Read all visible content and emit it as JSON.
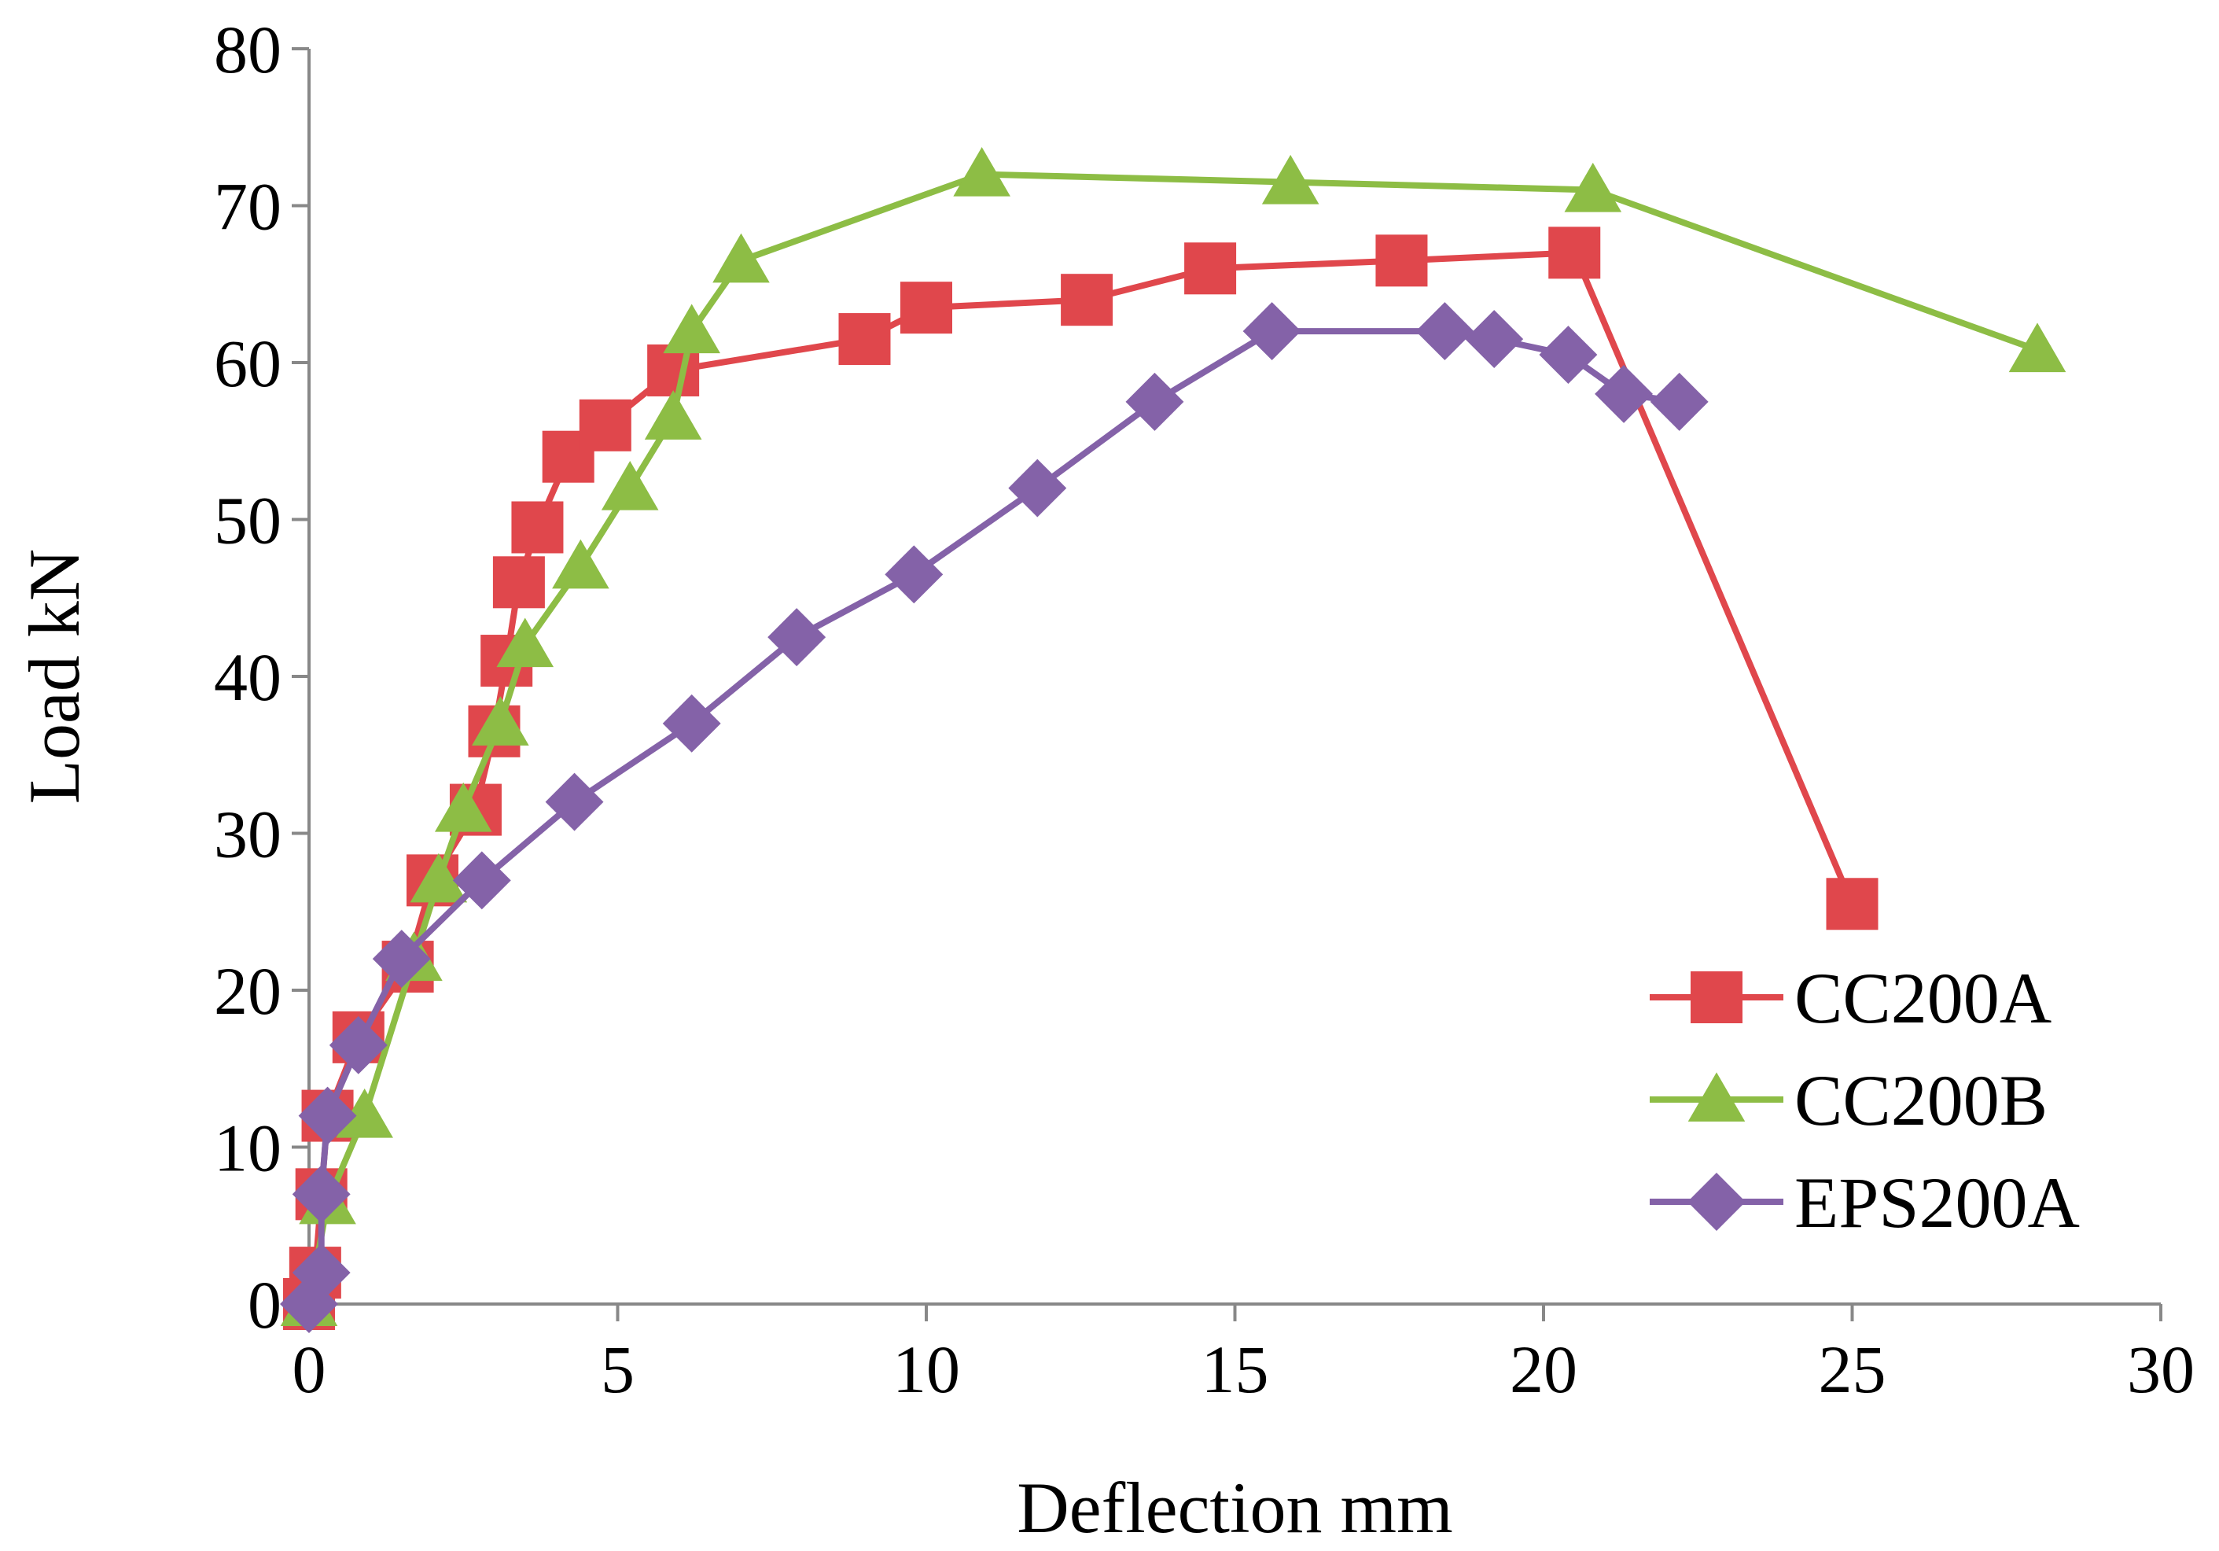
{
  "chart_data": {
    "type": "line",
    "title": "",
    "xlabel": "Deflection mm",
    "ylabel": "Load kN",
    "xlim": [
      0,
      30
    ],
    "ylim": [
      0,
      80
    ],
    "xticks": [
      0,
      5,
      10,
      15,
      20,
      25,
      30
    ],
    "yticks": [
      0,
      10,
      20,
      30,
      40,
      50,
      60,
      70,
      80
    ],
    "grid": false,
    "legend_position": "bottom-right",
    "series": [
      {
        "name": "CC200A",
        "color": "#E0474C",
        "marker": "square",
        "x": [
          0,
          0.1,
          0.2,
          0.3,
          0.8,
          1.6,
          2.0,
          2.7,
          3.0,
          3.2,
          3.4,
          3.7,
          4.2,
          4.8,
          5.9,
          9.0,
          10.0,
          12.6,
          14.6,
          17.7,
          20.5,
          25.0
        ],
        "y": [
          0,
          2,
          7,
          12,
          17,
          21.5,
          27,
          31.5,
          36.5,
          41,
          46,
          49.5,
          54,
          56,
          59.5,
          61.5,
          63.5,
          64,
          66,
          66.5,
          67,
          25.5
        ]
      },
      {
        "name": "CC200B",
        "color": "#8DBD45",
        "marker": "triangle",
        "x": [
          0,
          0.3,
          0.9,
          1.7,
          2.1,
          2.5,
          3.1,
          3.5,
          4.4,
          5.2,
          5.9,
          6.2,
          7.0,
          10.9,
          15.9,
          20.8,
          28.0
        ],
        "y": [
          0,
          6.5,
          12,
          22,
          27,
          31.5,
          37,
          42,
          47,
          52,
          56.5,
          62,
          66.5,
          72,
          71.5,
          71,
          60.8
        ]
      },
      {
        "name": "EPS200A",
        "color": "#8462A8",
        "marker": "diamond",
        "x": [
          0,
          0.2,
          0.2,
          0.3,
          0.8,
          1.5,
          2.8,
          4.3,
          6.2,
          7.9,
          9.8,
          11.8,
          13.7,
          15.6,
          18.4,
          19.2,
          20.4,
          21.3,
          22.2
        ],
        "y": [
          0,
          2,
          7,
          12,
          16.5,
          22,
          27,
          32,
          37,
          42.5,
          46.5,
          52,
          57.5,
          62,
          62,
          61.5,
          60.5,
          58,
          57.5
        ]
      }
    ]
  }
}
